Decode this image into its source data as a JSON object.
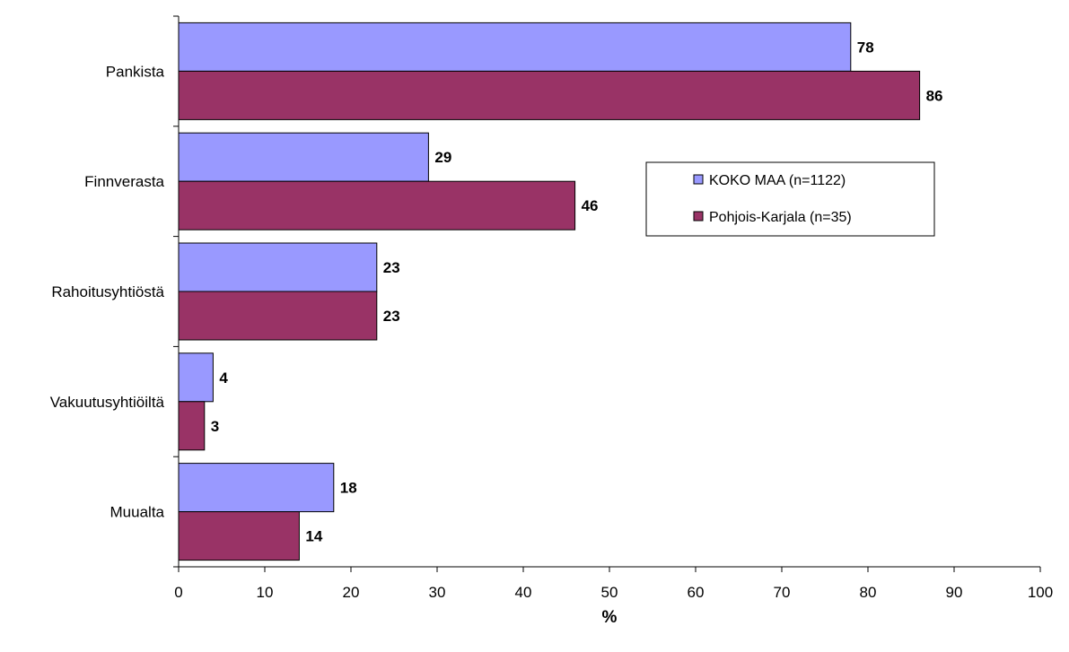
{
  "chart_data": {
    "type": "bar",
    "orientation": "horizontal",
    "categories": [
      "Pankista",
      "Finnverasta",
      "Rahoitusyhtiöstä",
      "Vakuutusyhtiöiltä",
      "Muualta"
    ],
    "series": [
      {
        "name": "KOKO MAA (n=1122)",
        "values": [
          78,
          29,
          23,
          4,
          18
        ],
        "color": "#9999ff"
      },
      {
        "name": "Pohjois-Karjala (n=35)",
        "values": [
          86,
          46,
          23,
          3,
          14
        ],
        "color": "#993366"
      }
    ],
    "xlabel": "%",
    "xlim": [
      0,
      100
    ],
    "xticks": [
      "0",
      "10",
      "20",
      "30",
      "40",
      "50",
      "60",
      "70",
      "80",
      "90",
      "100"
    ],
    "grid": false,
    "legend_position": "right"
  }
}
